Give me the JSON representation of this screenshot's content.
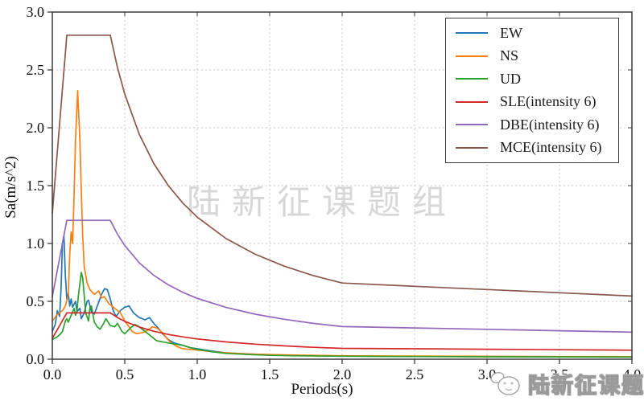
{
  "watermarks": {
    "center": "陆新征课题组",
    "badge": "陆新征课题组"
  },
  "chart_data": {
    "type": "line",
    "title": "",
    "xlabel": "Periods(s)",
    "ylabel": "Sa(m/s^2)",
    "xlim": [
      0.0,
      4.0
    ],
    "ylim": [
      0.0,
      3.0
    ],
    "xticks": [
      0.0,
      0.5,
      1.0,
      1.5,
      2.0,
      2.5,
      3.0,
      3.5,
      4.0
    ],
    "yticks": [
      0.0,
      0.5,
      1.0,
      1.5,
      2.0,
      2.5,
      3.0
    ],
    "grid": "dashed",
    "grid_color": "#c9c9c9",
    "spine_color": "#3a3a3a",
    "legend_position": "upper right",
    "series": [
      {
        "name": "EW",
        "color": "#1f77b4",
        "points": [
          [
            0,
            0.24
          ],
          [
            0.02,
            0.3
          ],
          [
            0.035,
            0.42
          ],
          [
            0.05,
            0.37
          ],
          [
            0.06,
            0.6
          ],
          [
            0.07,
            1.0
          ],
          [
            0.08,
            1.07
          ],
          [
            0.09,
            0.72
          ],
          [
            0.1,
            0.52
          ],
          [
            0.11,
            0.57
          ],
          [
            0.12,
            0.46
          ],
          [
            0.13,
            0.52
          ],
          [
            0.14,
            0.45
          ],
          [
            0.16,
            0.5
          ],
          [
            0.17,
            0.41
          ],
          [
            0.19,
            0.44
          ],
          [
            0.2,
            0.35
          ],
          [
            0.22,
            0.4
          ],
          [
            0.24,
            0.5
          ],
          [
            0.25,
            0.51
          ],
          [
            0.27,
            0.41
          ],
          [
            0.29,
            0.39
          ],
          [
            0.31,
            0.46
          ],
          [
            0.34,
            0.56
          ],
          [
            0.36,
            0.61
          ],
          [
            0.38,
            0.6
          ],
          [
            0.4,
            0.52
          ],
          [
            0.42,
            0.42
          ],
          [
            0.44,
            0.37
          ],
          [
            0.47,
            0.42
          ],
          [
            0.5,
            0.45
          ],
          [
            0.53,
            0.46
          ],
          [
            0.56,
            0.4
          ],
          [
            0.6,
            0.36
          ],
          [
            0.64,
            0.34
          ],
          [
            0.67,
            0.36
          ],
          [
            0.7,
            0.31
          ],
          [
            0.73,
            0.27
          ],
          [
            0.76,
            0.22
          ],
          [
            0.8,
            0.17
          ],
          [
            0.84,
            0.14
          ],
          [
            0.9,
            0.12
          ],
          [
            0.95,
            0.1
          ],
          [
            1.0,
            0.09
          ],
          [
            1.1,
            0.07
          ],
          [
            1.2,
            0.055
          ],
          [
            1.35,
            0.045
          ],
          [
            1.5,
            0.038
          ],
          [
            1.7,
            0.033
          ],
          [
            2.0,
            0.028
          ],
          [
            2.5,
            0.024
          ],
          [
            3.0,
            0.022
          ],
          [
            3.5,
            0.02
          ],
          [
            4.0,
            0.019
          ]
        ]
      },
      {
        "name": "NS",
        "color": "#ff7f0e",
        "points": [
          [
            0,
            0.33
          ],
          [
            0.03,
            0.38
          ],
          [
            0.05,
            0.4
          ],
          [
            0.07,
            0.42
          ],
          [
            0.09,
            0.46
          ],
          [
            0.11,
            0.55
          ],
          [
            0.12,
            0.9
          ],
          [
            0.13,
            1.1
          ],
          [
            0.14,
            1.0
          ],
          [
            0.15,
            1.4
          ],
          [
            0.16,
            1.9
          ],
          [
            0.175,
            2.32
          ],
          [
            0.19,
            1.9
          ],
          [
            0.2,
            1.45
          ],
          [
            0.21,
            1.05
          ],
          [
            0.22,
            0.8
          ],
          [
            0.24,
            0.66
          ],
          [
            0.26,
            0.6
          ],
          [
            0.29,
            0.56
          ],
          [
            0.32,
            0.59
          ],
          [
            0.34,
            0.53
          ],
          [
            0.36,
            0.54
          ],
          [
            0.39,
            0.48
          ],
          [
            0.42,
            0.45
          ],
          [
            0.44,
            0.43
          ],
          [
            0.47,
            0.4
          ],
          [
            0.5,
            0.33
          ],
          [
            0.53,
            0.28
          ],
          [
            0.55,
            0.24
          ],
          [
            0.58,
            0.22
          ],
          [
            0.62,
            0.23
          ],
          [
            0.66,
            0.25
          ],
          [
            0.69,
            0.28
          ],
          [
            0.72,
            0.27
          ],
          [
            0.76,
            0.23
          ],
          [
            0.79,
            0.18
          ],
          [
            0.82,
            0.14
          ],
          [
            0.86,
            0.11
          ],
          [
            0.9,
            0.09
          ],
          [
            0.95,
            0.085
          ],
          [
            1.0,
            0.08
          ],
          [
            1.1,
            0.065
          ],
          [
            1.2,
            0.055
          ],
          [
            1.35,
            0.045
          ],
          [
            1.5,
            0.04
          ],
          [
            1.7,
            0.035
          ],
          [
            2.0,
            0.03
          ],
          [
            2.5,
            0.027
          ],
          [
            3.0,
            0.025
          ],
          [
            3.5,
            0.023
          ],
          [
            4.0,
            0.022
          ]
        ]
      },
      {
        "name": "UD",
        "color": "#2ca02c",
        "points": [
          [
            0,
            0.17
          ],
          [
            0.03,
            0.19
          ],
          [
            0.05,
            0.21
          ],
          [
            0.07,
            0.24
          ],
          [
            0.09,
            0.33
          ],
          [
            0.1,
            0.35
          ],
          [
            0.11,
            0.32
          ],
          [
            0.13,
            0.38
          ],
          [
            0.15,
            0.44
          ],
          [
            0.16,
            0.38
          ],
          [
            0.17,
            0.42
          ],
          [
            0.18,
            0.55
          ],
          [
            0.2,
            0.75
          ],
          [
            0.21,
            0.7
          ],
          [
            0.23,
            0.4
          ],
          [
            0.25,
            0.33
          ],
          [
            0.26,
            0.45
          ],
          [
            0.27,
            0.46
          ],
          [
            0.29,
            0.32
          ],
          [
            0.31,
            0.28
          ],
          [
            0.33,
            0.26
          ],
          [
            0.35,
            0.3
          ],
          [
            0.37,
            0.35
          ],
          [
            0.4,
            0.29
          ],
          [
            0.43,
            0.28
          ],
          [
            0.45,
            0.31
          ],
          [
            0.48,
            0.24
          ],
          [
            0.5,
            0.22
          ],
          [
            0.54,
            0.27
          ],
          [
            0.57,
            0.3
          ],
          [
            0.6,
            0.28
          ],
          [
            0.64,
            0.24
          ],
          [
            0.68,
            0.2
          ],
          [
            0.72,
            0.16
          ],
          [
            0.76,
            0.15
          ],
          [
            0.8,
            0.14
          ],
          [
            0.85,
            0.13
          ],
          [
            0.9,
            0.12
          ],
          [
            0.95,
            0.1
          ],
          [
            1.0,
            0.085
          ],
          [
            1.1,
            0.065
          ],
          [
            1.2,
            0.05
          ],
          [
            1.35,
            0.04
          ],
          [
            1.5,
            0.033
          ],
          [
            1.7,
            0.029
          ],
          [
            2.0,
            0.026
          ],
          [
            2.5,
            0.023
          ],
          [
            3.0,
            0.021
          ],
          [
            3.5,
            0.02
          ],
          [
            4.0,
            0.019
          ]
        ]
      },
      {
        "name": "SLE(intensity 6)",
        "color": "#d62728",
        "points": [
          [
            0,
            0.18
          ],
          [
            0.1,
            0.4
          ],
          [
            0.4,
            0.4
          ],
          [
            0.45,
            0.36
          ],
          [
            0.5,
            0.327
          ],
          [
            0.6,
            0.278
          ],
          [
            0.7,
            0.242
          ],
          [
            0.8,
            0.214
          ],
          [
            0.9,
            0.193
          ],
          [
            1.0,
            0.175
          ],
          [
            1.2,
            0.149
          ],
          [
            1.4,
            0.13
          ],
          [
            1.6,
            0.115
          ],
          [
            1.8,
            0.103
          ],
          [
            2.0,
            0.094
          ],
          [
            2.5,
            0.09
          ],
          [
            3.0,
            0.086
          ],
          [
            3.5,
            0.082
          ],
          [
            4.0,
            0.078
          ]
        ]
      },
      {
        "name": "DBE(intensity 6)",
        "color": "#9467bd",
        "points": [
          [
            0,
            0.54
          ],
          [
            0.1,
            1.2
          ],
          [
            0.4,
            1.2
          ],
          [
            0.45,
            1.079
          ],
          [
            0.5,
            0.982
          ],
          [
            0.6,
            0.833
          ],
          [
            0.7,
            0.725
          ],
          [
            0.8,
            0.643
          ],
          [
            0.9,
            0.578
          ],
          [
            1.0,
            0.526
          ],
          [
            1.2,
            0.447
          ],
          [
            1.4,
            0.389
          ],
          [
            1.6,
            0.345
          ],
          [
            1.8,
            0.31
          ],
          [
            2.0,
            0.282
          ],
          [
            2.5,
            0.27
          ],
          [
            3.0,
            0.258
          ],
          [
            3.5,
            0.246
          ],
          [
            4.0,
            0.234
          ]
        ]
      },
      {
        "name": "MCE(intensity 6)",
        "color": "#8c564b",
        "points": [
          [
            0,
            1.26
          ],
          [
            0.1,
            2.8
          ],
          [
            0.4,
            2.8
          ],
          [
            0.45,
            2.518
          ],
          [
            0.5,
            2.291
          ],
          [
            0.6,
            1.944
          ],
          [
            0.7,
            1.692
          ],
          [
            0.8,
            1.501
          ],
          [
            0.9,
            1.35
          ],
          [
            1.0,
            1.228
          ],
          [
            1.2,
            1.042
          ],
          [
            1.4,
            0.907
          ],
          [
            1.6,
            0.804
          ],
          [
            1.8,
            0.723
          ],
          [
            2.0,
            0.658
          ],
          [
            2.5,
            0.63
          ],
          [
            3.0,
            0.602
          ],
          [
            3.5,
            0.574
          ],
          [
            4.0,
            0.546
          ]
        ]
      }
    ]
  }
}
